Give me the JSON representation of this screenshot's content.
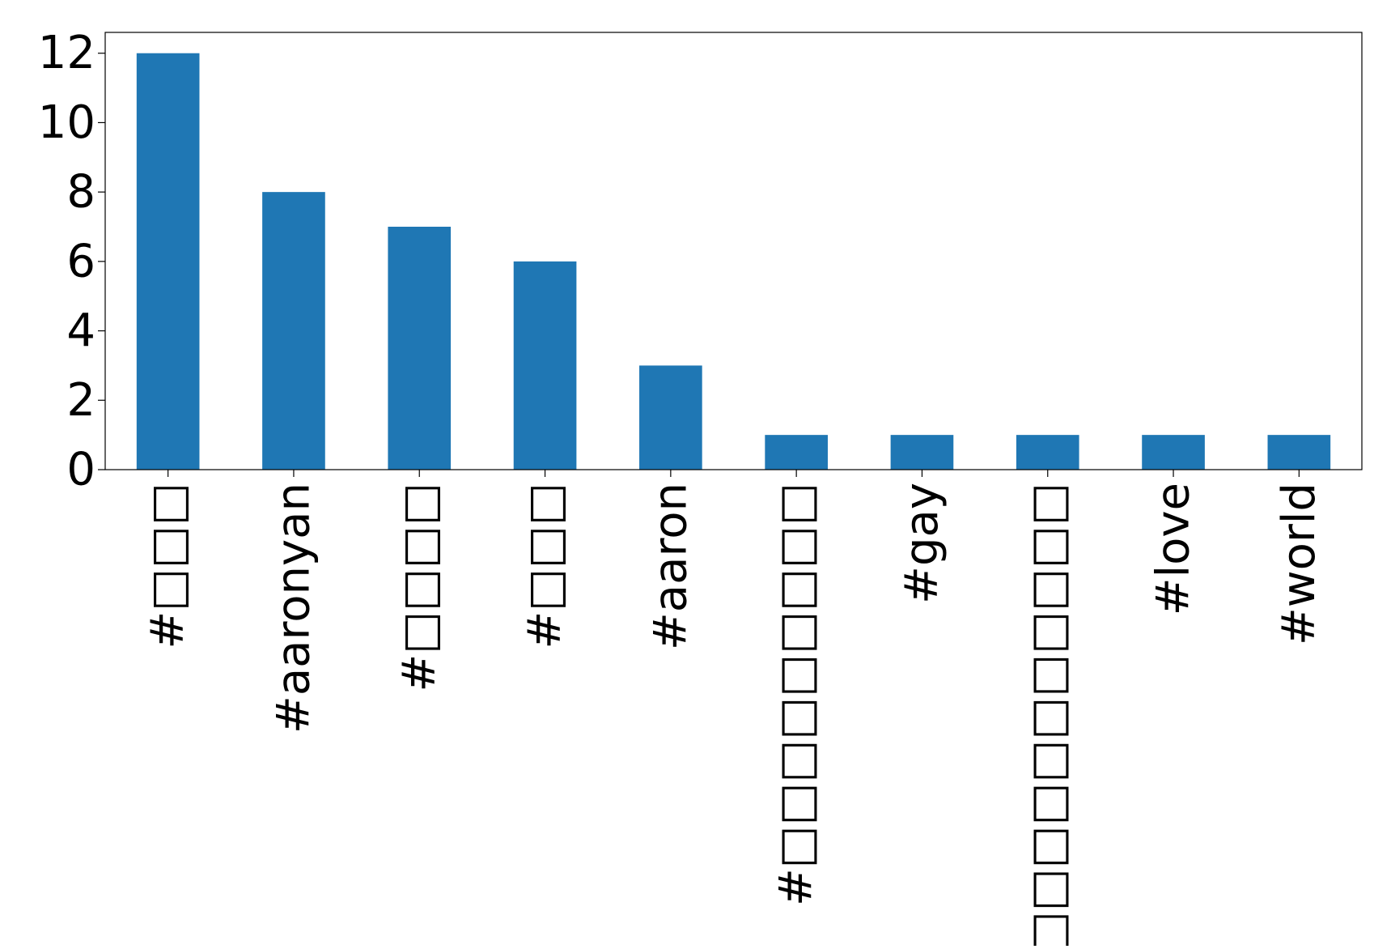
{
  "chart_data": {
    "type": "bar",
    "title": "",
    "xlabel": "",
    "ylabel": "",
    "categories": [
      "#□□□",
      "#aaronyan",
      "#□□□□",
      "#□□□",
      "#aaron",
      "#□□□□□□□□□",
      "#gay",
      "#□□□□□□□□□□□",
      "#love",
      "#world"
    ],
    "values": [
      12,
      8,
      7,
      6,
      3,
      1,
      1,
      1,
      1,
      1
    ],
    "ylim": [
      0,
      12.6
    ],
    "yticks": [
      0,
      2,
      4,
      6,
      8,
      10,
      12
    ],
    "grid": false,
    "legend": "none",
    "bar_color": "#1f77b4",
    "axis_color": "#000000"
  }
}
